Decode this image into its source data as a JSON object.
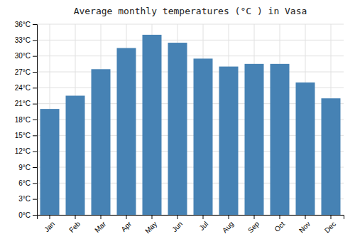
{
  "chart_data": {
    "type": "bar",
    "title": "Average monthly temperatures (°C ) in Vasa",
    "categories": [
      "Jan",
      "Feb",
      "Mar",
      "Apr",
      "May",
      "Jun",
      "Jul",
      "Aug",
      "Sep",
      "Oct",
      "Nov",
      "Dec"
    ],
    "values": [
      20.0,
      22.5,
      27.5,
      31.5,
      34.0,
      32.5,
      29.5,
      28.0,
      28.5,
      28.5,
      25.0,
      22.0
    ],
    "ylim": [
      0,
      36
    ],
    "yticks": [
      {
        "value": 0,
        "label": "0°C"
      },
      {
        "value": 3,
        "label": "3°C"
      },
      {
        "value": 6,
        "label": "6°C"
      },
      {
        "value": 9,
        "label": "9°C"
      },
      {
        "value": 12,
        "label": "12°C"
      },
      {
        "value": 15,
        "label": "15°C"
      },
      {
        "value": 18,
        "label": "18°C"
      },
      {
        "value": 21,
        "label": "21°C"
      },
      {
        "value": 24,
        "label": "24°C"
      },
      {
        "value": 27,
        "label": "27°C"
      },
      {
        "value": 30,
        "label": "30°C"
      },
      {
        "value": 33,
        "label": "33°C"
      },
      {
        "value": 36,
        "label": "36°C"
      }
    ],
    "grid": true
  }
}
